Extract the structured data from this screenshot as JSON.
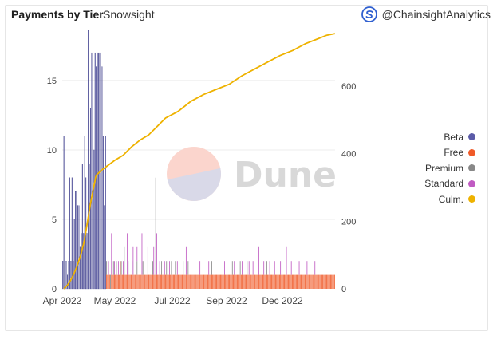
{
  "header": {
    "title": "Payments by Tier",
    "subtitle": "Snowsight",
    "attribution": "@ChainsightAnalytics",
    "watermark": "Dune"
  },
  "colors": {
    "Beta": "#5b5ba8",
    "Free": "#f05a28",
    "Premium": "#888888",
    "Standard": "#c05bc2",
    "Culm.": "#eeb200"
  },
  "chart_data": {
    "type": "bar",
    "title": "Payments by Tier",
    "xlabel": "",
    "ylabel": "",
    "x_tick_labels": [
      "Apr 2022",
      "May 2022",
      "Jul 2022",
      "Sep 2022",
      "Dec 2022"
    ],
    "y_left_ticks": [
      0,
      5,
      10,
      15
    ],
    "y_right_ticks": [
      0,
      200,
      400,
      600
    ],
    "ylim_left": [
      0,
      18.5
    ],
    "ylim_right": [
      0,
      760
    ],
    "legend_position": "right",
    "series": [
      {
        "name": "Beta",
        "axis": "left",
        "kind": "bar",
        "values": [
          2,
          11,
          2,
          2,
          1,
          2,
          8,
          2,
          8,
          2,
          5,
          7,
          7,
          6,
          6,
          3,
          4,
          9,
          4,
          11,
          8,
          4,
          18.6,
          9,
          13,
          17,
          7,
          10,
          17,
          16,
          17,
          17,
          17,
          12,
          16,
          11,
          6,
          11
        ]
      },
      {
        "name": "Free",
        "axis": "left",
        "kind": "bar",
        "values": [
          1,
          1,
          1,
          1,
          0,
          1,
          1,
          1,
          1,
          1,
          1,
          1,
          1,
          1,
          2,
          1,
          1,
          1,
          1,
          1,
          1,
          1,
          1,
          1,
          1,
          1,
          1,
          1,
          1,
          1,
          1,
          1,
          1,
          1,
          1,
          1,
          1,
          1,
          1,
          1,
          1,
          1,
          1,
          1,
          1,
          1,
          1,
          1,
          1,
          1,
          1,
          1,
          1,
          1,
          1,
          1,
          1,
          1,
          1,
          1,
          1,
          1,
          1,
          1,
          1,
          1,
          1,
          1,
          1,
          1,
          1,
          1,
          1,
          1,
          1,
          1,
          1,
          1,
          1,
          1,
          1,
          1,
          1,
          1,
          1,
          1,
          1,
          1,
          1,
          1,
          1,
          1,
          1,
          1,
          1,
          1,
          1,
          1,
          1,
          1,
          1,
          1,
          1,
          1,
          1,
          1,
          1,
          1,
          1,
          1,
          1,
          1,
          1,
          1,
          1,
          1,
          1,
          1,
          1,
          1,
          1,
          1,
          1,
          1,
          1,
          1,
          1,
          1,
          1,
          1,
          1,
          1,
          1,
          1,
          1,
          1,
          1,
          1,
          1,
          1,
          1,
          1,
          1,
          1,
          1,
          1,
          1,
          1,
          1,
          1,
          1,
          1,
          1,
          1,
          1,
          1,
          1,
          1,
          1,
          1,
          1,
          1,
          1,
          1,
          1,
          1,
          1,
          1,
          1,
          1,
          1,
          1,
          1,
          1,
          1,
          1,
          1,
          1,
          1,
          1,
          1,
          1,
          1,
          1,
          1,
          1,
          1,
          1,
          1,
          1,
          1,
          1,
          1,
          1,
          1,
          1,
          1,
          1,
          1,
          1,
          1,
          1,
          1,
          1,
          1,
          1,
          1,
          1,
          1,
          1,
          1,
          1,
          1,
          1,
          1,
          1,
          1,
          1,
          1,
          1,
          1,
          1,
          1,
          1,
          1,
          1,
          1,
          1,
          1,
          1,
          1,
          1,
          1
        ]
      },
      {
        "name": "Premium",
        "axis": "left",
        "kind": "bar",
        "values": [
          1,
          0,
          0,
          0,
          1,
          0,
          0,
          1,
          0,
          0,
          1,
          0,
          0,
          0,
          0,
          1,
          0,
          0,
          2,
          0,
          0,
          0,
          1,
          0,
          0,
          0,
          1,
          0,
          0,
          0,
          0,
          1,
          0,
          0,
          1,
          0,
          0,
          1,
          0,
          0,
          0,
          0,
          1,
          0,
          0,
          0,
          0,
          1,
          0,
          0,
          7,
          0,
          0,
          0,
          0,
          0,
          1,
          0,
          0,
          0,
          0,
          1,
          0,
          0,
          0,
          0,
          1,
          0,
          0,
          0,
          1,
          0,
          0,
          0,
          0,
          0,
          0,
          0,
          1,
          0,
          0,
          0,
          0,
          1,
          0,
          0,
          0,
          0,
          0,
          0,
          0,
          0,
          0,
          0,
          0,
          0,
          0,
          0,
          0,
          0,
          0,
          0,
          0,
          0,
          0,
          0,
          0,
          1,
          0,
          0,
          0,
          0,
          0,
          0,
          0,
          0,
          0,
          0,
          0,
          0,
          0,
          0,
          0,
          0,
          0,
          0,
          0,
          0,
          1,
          0,
          0,
          0,
          0,
          0,
          0,
          0,
          1,
          0,
          0,
          0,
          0,
          0,
          0,
          1,
          0,
          0,
          0,
          0,
          0,
          0,
          0,
          0,
          0,
          0,
          0,
          0,
          0,
          0,
          0,
          0,
          0,
          0,
          0,
          1,
          0,
          0,
          0,
          0,
          0,
          0,
          0,
          0,
          0,
          0,
          0,
          0,
          0,
          0,
          0,
          0,
          0,
          0,
          0,
          0,
          0,
          0,
          0,
          0,
          0,
          0,
          0,
          0,
          0,
          0,
          0,
          0,
          0,
          0,
          0,
          0,
          0,
          0,
          0,
          0,
          0,
          0,
          0,
          0,
          0,
          0,
          0,
          0,
          0,
          0,
          0,
          0,
          0,
          0,
          0,
          0,
          0,
          0,
          0,
          0,
          0,
          0,
          0,
          0,
          0,
          0,
          0,
          0,
          0,
          0,
          0,
          0,
          0,
          0,
          0
        ]
      },
      {
        "name": "Standard",
        "axis": "left",
        "kind": "bar",
        "values": [
          0,
          0,
          1,
          0,
          0,
          3,
          0,
          0,
          1,
          0,
          0,
          0,
          1,
          0,
          0,
          0,
          0,
          1,
          0,
          0,
          0,
          3,
          0,
          0,
          0,
          0,
          0,
          2,
          0,
          0,
          0,
          1,
          0,
          0,
          0,
          0,
          3,
          0,
          0,
          0,
          0,
          0,
          1,
          0,
          0,
          0,
          0,
          0,
          2,
          0,
          0,
          3,
          0,
          0,
          1,
          0,
          0,
          0,
          0,
          1,
          0,
          0,
          0,
          0,
          1,
          0,
          0,
          0,
          0,
          0,
          0,
          0,
          1,
          0,
          0,
          0,
          0,
          0,
          0,
          0,
          0,
          2,
          0,
          0,
          0,
          0,
          0,
          0,
          0,
          0,
          0,
          0,
          0,
          0,
          0,
          1,
          0,
          0,
          0,
          0,
          0,
          0,
          0,
          0,
          1,
          0,
          0,
          0,
          0,
          0,
          0,
          0,
          0,
          0,
          0,
          0,
          0,
          0,
          0,
          0,
          1,
          0,
          0,
          0,
          0,
          0,
          0,
          0,
          0,
          0,
          1,
          0,
          0,
          0,
          0,
          0,
          0,
          0,
          1,
          0,
          0,
          0,
          0,
          0,
          0,
          1,
          0,
          0,
          0,
          1,
          0,
          0,
          0,
          0,
          0,
          2,
          0,
          0,
          0,
          0,
          1,
          0,
          0,
          0,
          0,
          0,
          1,
          0,
          0,
          0,
          0,
          1,
          0,
          0,
          0,
          0,
          0,
          1,
          0,
          0,
          0,
          0,
          0,
          2,
          0,
          0,
          0,
          0,
          1,
          0,
          0,
          0,
          0,
          0,
          0,
          0,
          1,
          0,
          0,
          0,
          0,
          0,
          0,
          0,
          1,
          0,
          0,
          0,
          0,
          0,
          0,
          0,
          1,
          0,
          0,
          0,
          0,
          0,
          0,
          0,
          0,
          0,
          0,
          0,
          0,
          0,
          0,
          0,
          0,
          0,
          0,
          0,
          0,
          0
        ]
      },
      {
        "name": "Culm.",
        "axis": "right",
        "kind": "line",
        "points": [
          [
            0,
            0
          ],
          [
            4,
            10
          ],
          [
            8,
            25
          ],
          [
            12,
            45
          ],
          [
            16,
            70
          ],
          [
            20,
            100
          ],
          [
            24,
            140
          ],
          [
            28,
            200
          ],
          [
            32,
            260
          ],
          [
            36,
            310
          ],
          [
            38,
            335
          ],
          [
            44,
            350
          ],
          [
            52,
            365
          ],
          [
            60,
            380
          ],
          [
            70,
            395
          ],
          [
            80,
            420
          ],
          [
            90,
            440
          ],
          [
            100,
            455
          ],
          [
            110,
            480
          ],
          [
            120,
            505
          ],
          [
            135,
            525
          ],
          [
            150,
            555
          ],
          [
            165,
            575
          ],
          [
            180,
            590
          ],
          [
            195,
            605
          ],
          [
            210,
            630
          ],
          [
            225,
            650
          ],
          [
            240,
            670
          ],
          [
            255,
            690
          ],
          [
            270,
            705
          ],
          [
            285,
            725
          ],
          [
            300,
            740
          ],
          [
            310,
            750
          ],
          [
            320,
            755
          ]
        ]
      }
    ]
  }
}
